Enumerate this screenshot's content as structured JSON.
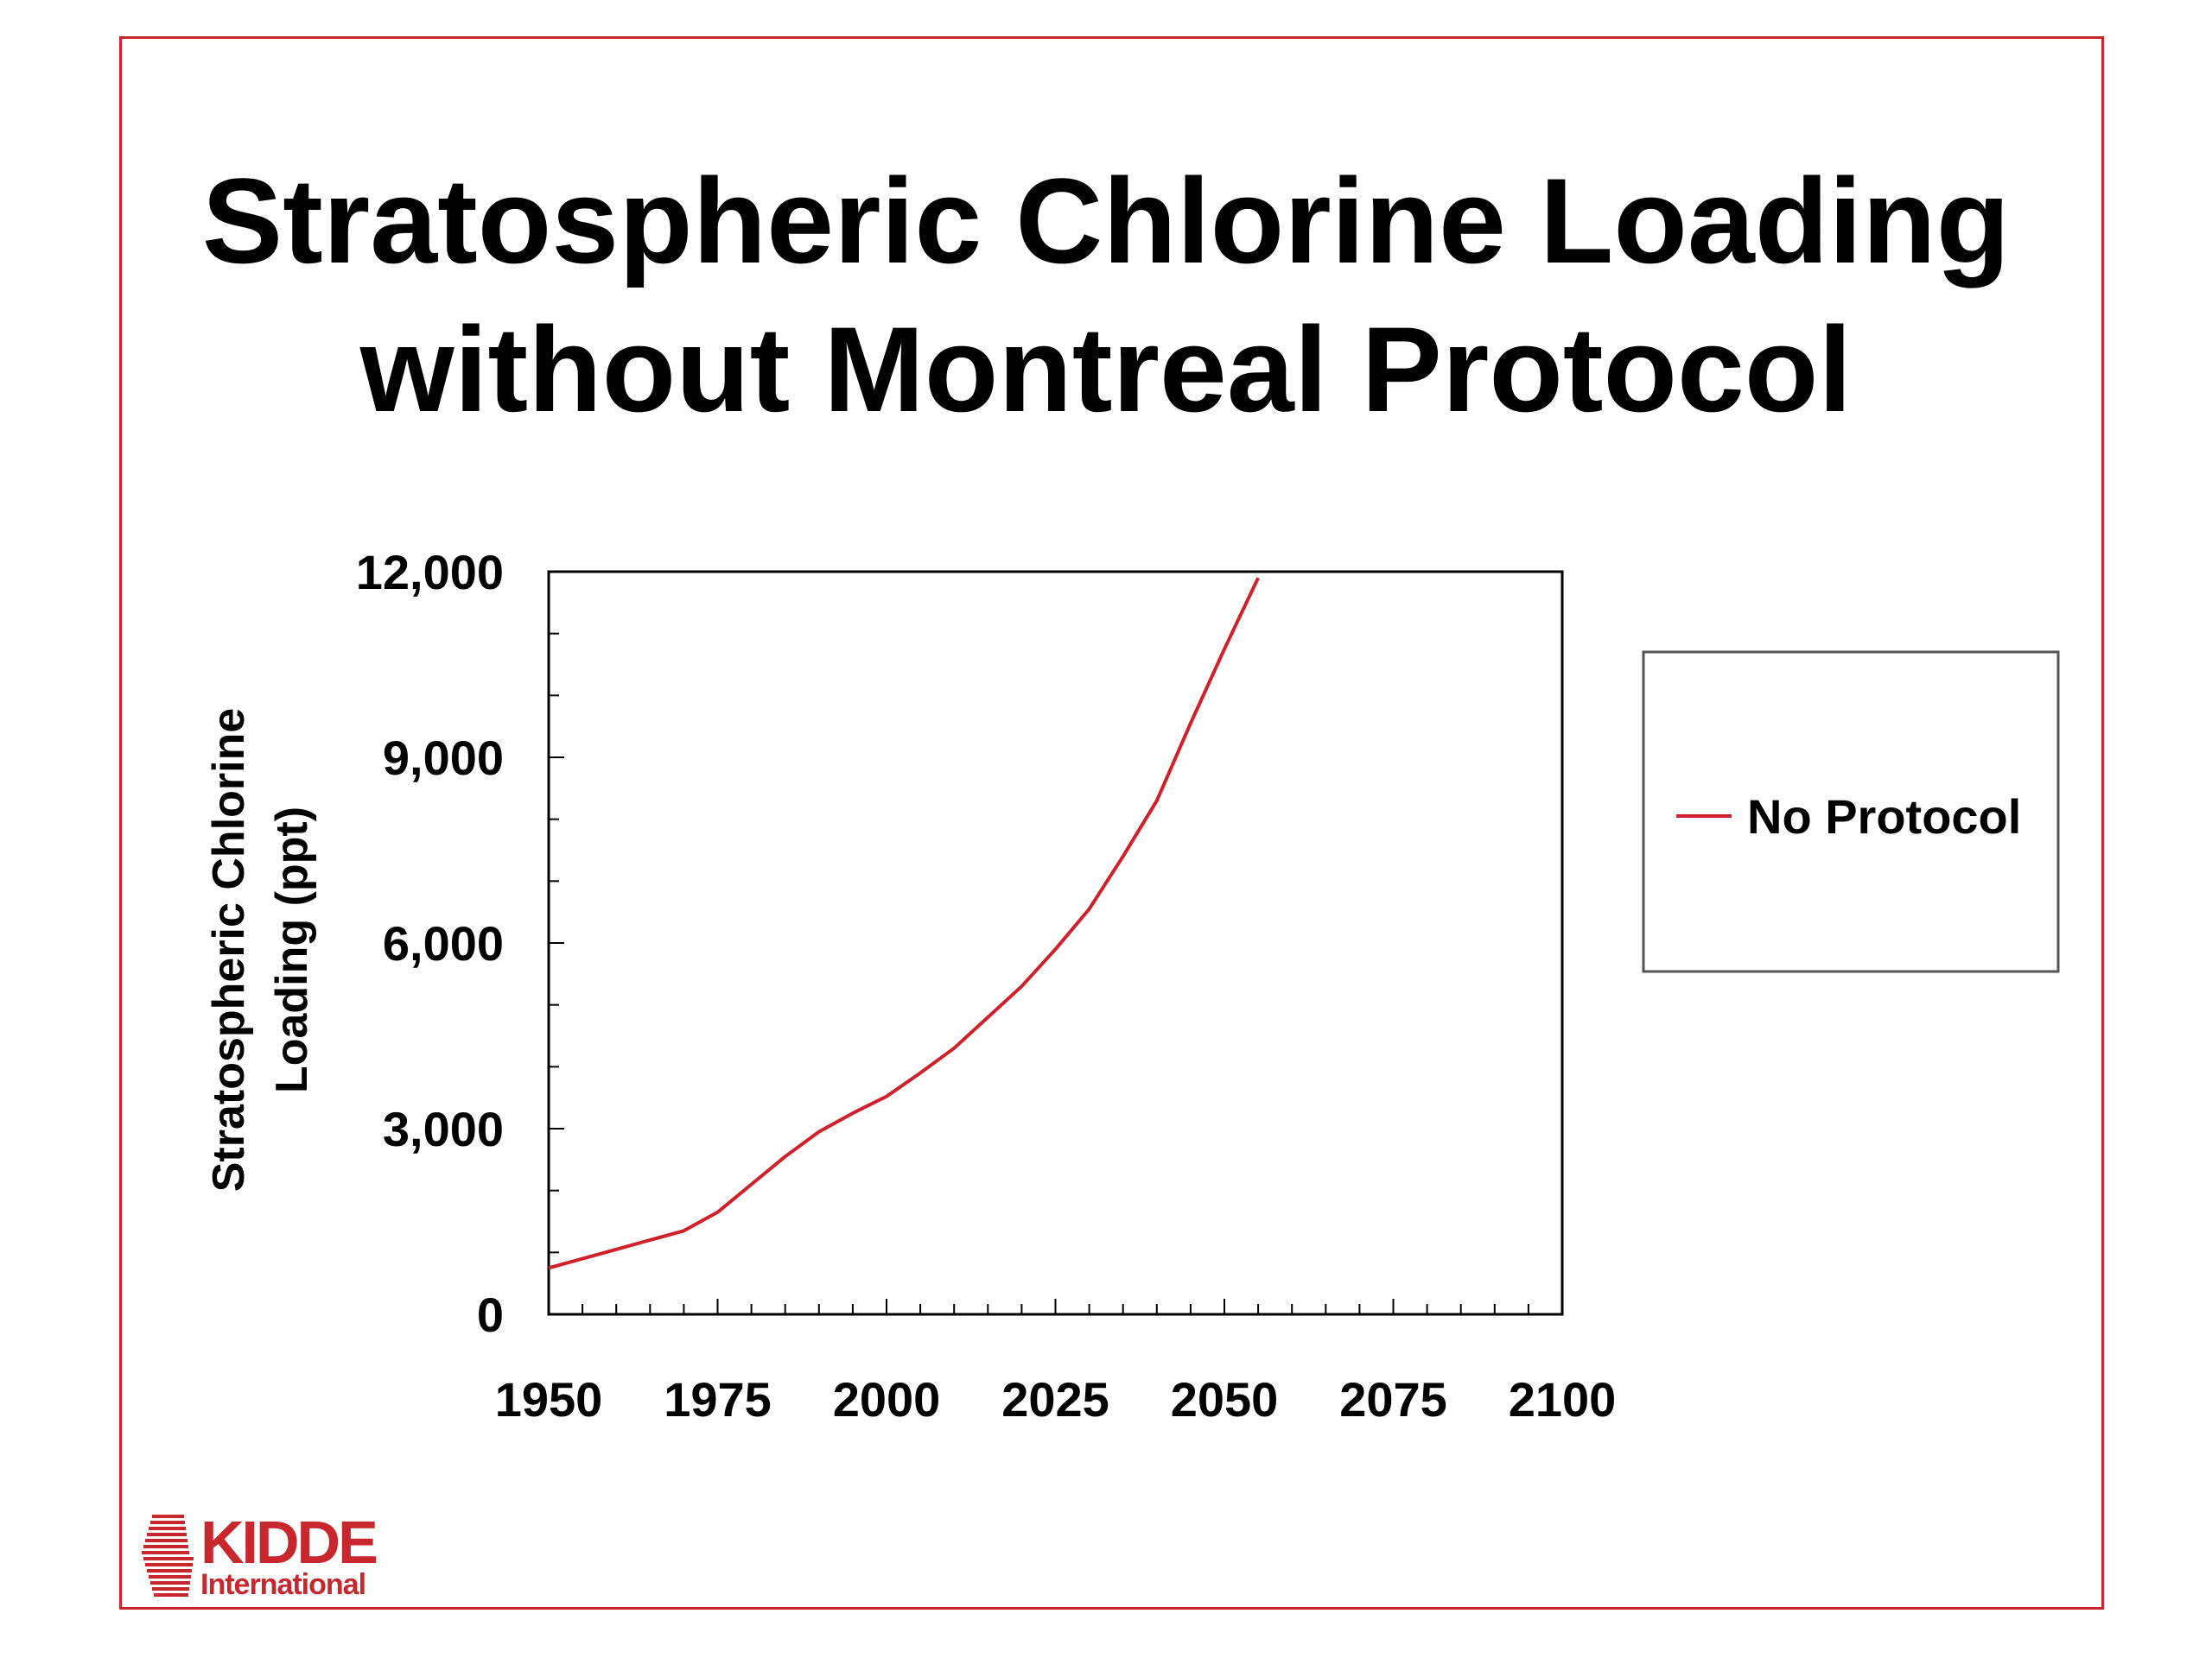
{
  "slide": {
    "title_line1": "Stratospheric Chlorine Loading",
    "title_line2": "without Montreal Protocol",
    "logo": {
      "brand": "KIDDE",
      "sub": "International",
      "color": "#c9272e"
    },
    "frame_color": "#c9272e"
  },
  "chart_data": {
    "type": "line",
    "title": "",
    "xlabel": "",
    "ylabel_line1": "Stratospheric Chlorine",
    "ylabel_line2": "Loading (ppt)",
    "xlim": [
      1950,
      2100
    ],
    "ylim": [
      0,
      12000
    ],
    "x_ticks": [
      1950,
      1975,
      2000,
      2025,
      2050,
      2075,
      2100
    ],
    "x_tick_labels": [
      "1950",
      "1975",
      "2000",
      "2025",
      "2050",
      "2075",
      "2100"
    ],
    "y_ticks": [
      0,
      3000,
      6000,
      9000,
      12000
    ],
    "y_tick_labels": [
      "0",
      "3,000",
      "6,000",
      "9,000",
      "12,000"
    ],
    "legend_position": "right",
    "grid": false,
    "series": [
      {
        "name": "No Protocol",
        "color": "#d0202a",
        "x": [
          1950,
          1960,
          1970,
          1975,
          1980,
          1985,
          1990,
          1995,
          2000,
          2005,
          2010,
          2015,
          2020,
          2025,
          2030,
          2035,
          2040,
          2045,
          2050,
          2055
        ],
        "y": [
          750,
          1050,
          1350,
          1650,
          2100,
          2550,
          2950,
          3250,
          3520,
          3900,
          4300,
          4800,
          5300,
          5900,
          6550,
          7400,
          8300,
          9550,
          10750,
          11900
        ]
      }
    ]
  }
}
